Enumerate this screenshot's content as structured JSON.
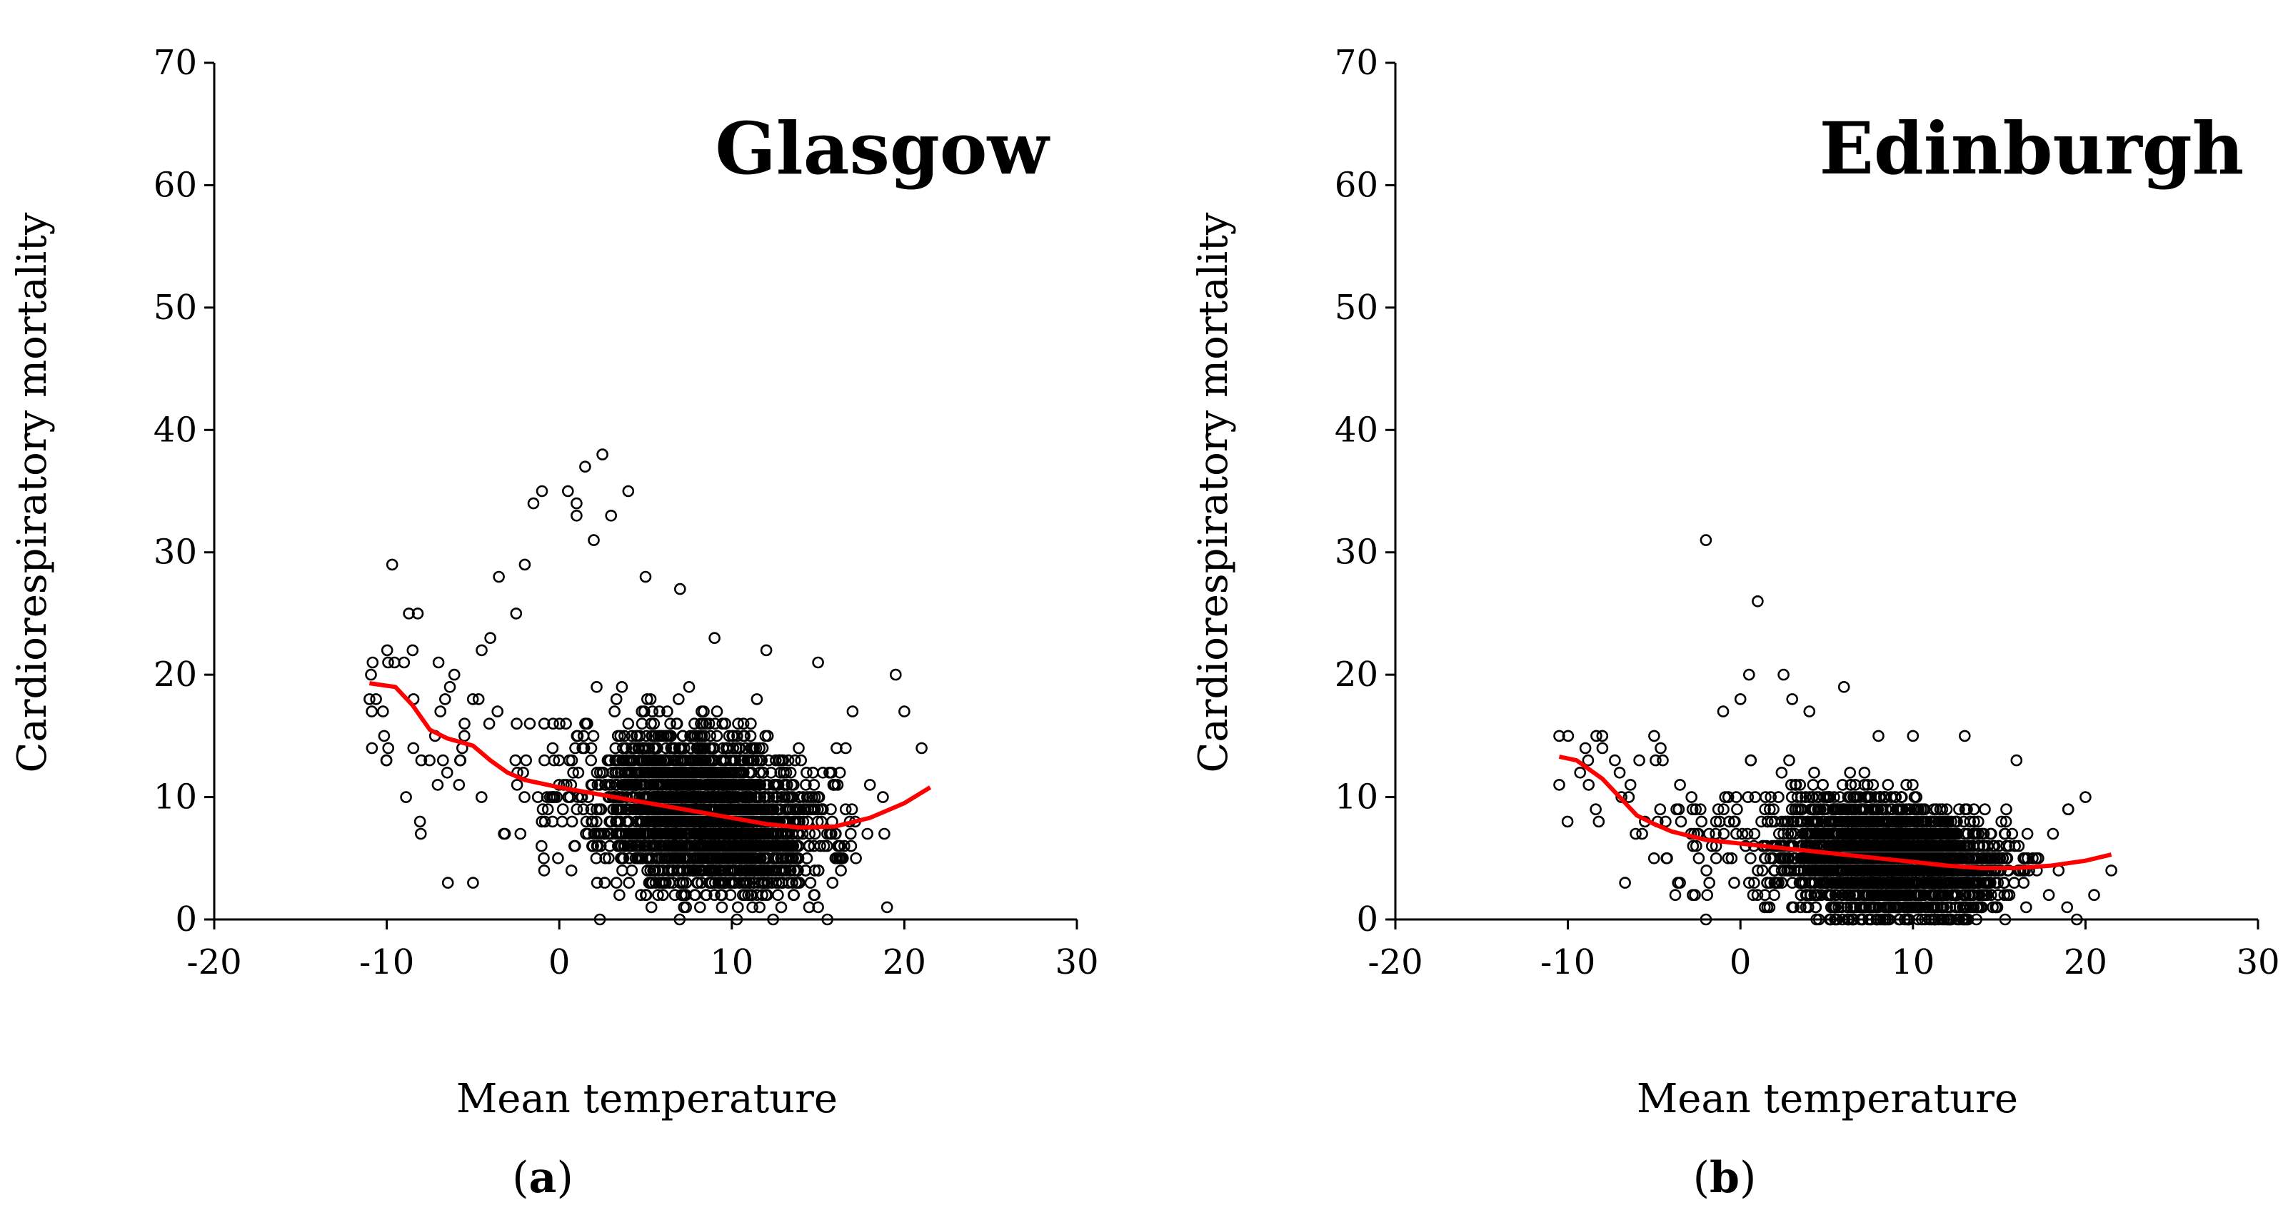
{
  "chart_data": [
    {
      "type": "scatter",
      "panel_label": "a",
      "title": "Glasgow",
      "xlabel": "Mean temperature",
      "ylabel": "Cardiorespiratory mortality",
      "xlim": [
        -20,
        30
      ],
      "ylim": [
        0,
        70
      ],
      "xticks": [
        -20,
        -10,
        0,
        10,
        20,
        30
      ],
      "yticks": [
        0,
        10,
        20,
        30,
        40,
        50,
        60,
        70
      ],
      "grid": false,
      "marker_color": "#000000",
      "series": [
        {
          "kind": "points",
          "x_range": [
            -11,
            21.5
          ],
          "cloud": {
            "center_temp": 7,
            "typical_range": [
              0,
              20
            ]
          },
          "outliers": [
            [
              -11,
              18
            ],
            [
              -9,
              21
            ],
            [
              -8.5,
              22
            ],
            [
              -8,
              13
            ],
            [
              -7,
              21
            ],
            [
              -6.5,
              12
            ],
            [
              -5.5,
              15
            ],
            [
              -5,
              3
            ],
            [
              -4.5,
              22
            ],
            [
              -4,
              23
            ],
            [
              -3.5,
              28
            ],
            [
              -2.5,
              25
            ],
            [
              -2,
              29
            ],
            [
              -1.5,
              34
            ],
            [
              -1,
              35
            ],
            [
              0.5,
              35
            ],
            [
              1,
              33
            ],
            [
              1.5,
              37
            ],
            [
              2.5,
              38
            ],
            [
              3,
              33
            ],
            [
              4,
              35
            ],
            [
              1,
              34
            ],
            [
              2,
              31
            ],
            [
              5,
              28
            ],
            [
              7,
              27
            ],
            [
              9,
              23
            ],
            [
              12,
              22
            ],
            [
              15,
              21
            ],
            [
              17,
              17
            ],
            [
              19.5,
              20
            ],
            [
              20,
              17
            ],
            [
              21,
              14
            ],
            [
              19,
              1
            ],
            [
              15,
              1
            ]
          ]
        },
        {
          "kind": "smooth",
          "color": "#ff0000",
          "x": [
            -11,
            -9.5,
            -8.5,
            -7.5,
            -6.5,
            -5,
            -4,
            -3,
            -2,
            0,
            2,
            4,
            6,
            8,
            10,
            12,
            14,
            16,
            18,
            20,
            21.5
          ],
          "y": [
            19.3,
            19.0,
            17.5,
            15.5,
            14.8,
            14.2,
            13.0,
            12.0,
            11.4,
            10.8,
            10.3,
            9.8,
            9.3,
            8.8,
            8.3,
            7.8,
            7.5,
            7.6,
            8.3,
            9.5,
            10.8
          ]
        }
      ]
    },
    {
      "type": "scatter",
      "panel_label": "b",
      "title": "Edinburgh",
      "xlabel": "Mean temperature",
      "ylabel": "Cardiorespiratory mortality",
      "xlim": [
        -20,
        30
      ],
      "ylim": [
        0,
        70
      ],
      "xticks": [
        -20,
        -10,
        0,
        10,
        20,
        30
      ],
      "yticks": [
        0,
        10,
        20,
        30,
        40,
        50,
        60,
        70
      ],
      "grid": false,
      "marker_color": "#000000",
      "series": [
        {
          "kind": "points",
          "x_range": [
            -10.5,
            21.5
          ],
          "cloud": {
            "center_temp": 7,
            "typical_range": [
              0,
              20
            ]
          },
          "outliers": [
            [
              -10.5,
              15
            ],
            [
              -10.5,
              11
            ],
            [
              -8,
              14
            ],
            [
              -7,
              12
            ],
            [
              -5,
              15
            ],
            [
              -4.5,
              13
            ],
            [
              -3.5,
              3
            ],
            [
              -2,
              31
            ],
            [
              1,
              26
            ],
            [
              0.5,
              20
            ],
            [
              2.5,
              20
            ],
            [
              0,
              18
            ],
            [
              -1,
              17
            ],
            [
              3,
              18
            ],
            [
              4,
              17
            ],
            [
              6,
              19
            ],
            [
              8,
              15
            ],
            [
              10,
              15
            ],
            [
              13,
              15
            ],
            [
              16,
              13
            ],
            [
              19,
              9
            ],
            [
              20,
              10
            ],
            [
              21.5,
              4
            ],
            [
              20.5,
              2
            ],
            [
              19.5,
              0
            ],
            [
              -2,
              0
            ]
          ]
        },
        {
          "kind": "smooth",
          "color": "#ff0000",
          "x": [
            -10.5,
            -9.5,
            -8,
            -7,
            -6,
            -5,
            -4,
            -2,
            0,
            2,
            4,
            6,
            8,
            10,
            12,
            14,
            16,
            18,
            20,
            21.5
          ],
          "y": [
            13.3,
            13.0,
            11.5,
            10.0,
            8.5,
            7.8,
            7.2,
            6.5,
            6.2,
            5.9,
            5.6,
            5.3,
            5.0,
            4.7,
            4.4,
            4.2,
            4.2,
            4.4,
            4.8,
            5.3
          ]
        }
      ]
    }
  ]
}
